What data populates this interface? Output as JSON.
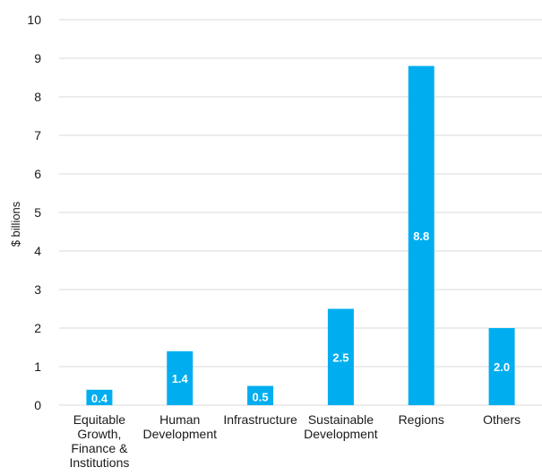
{
  "chart_data": {
    "type": "bar",
    "categories": [
      [
        "Equitable",
        "Growth,",
        "Finance &",
        "Institutions"
      ],
      [
        "Human",
        "Development"
      ],
      [
        "Infrastructure"
      ],
      [
        "Sustainable",
        "Development"
      ],
      [
        "Regions"
      ],
      [
        "Others"
      ]
    ],
    "values": [
      0.4,
      1.4,
      0.5,
      2.5,
      8.8,
      2.0
    ],
    "data_labels": [
      "0.4",
      "1.4",
      "0.5",
      "2.5",
      "8.8",
      "2.0"
    ],
    "ylabel": "$ billions",
    "ylim": [
      0,
      10
    ],
    "yticks": [
      0,
      1,
      2,
      3,
      4,
      5,
      6,
      7,
      8,
      9,
      10
    ],
    "grid": true,
    "bar_color": "#00AEEF",
    "grid_color": "#d9d9d9",
    "label_color": "#ffffff"
  }
}
